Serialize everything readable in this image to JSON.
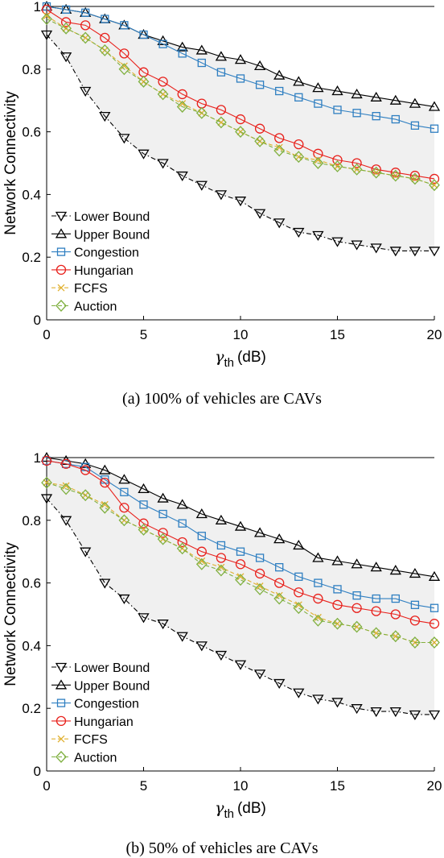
{
  "chart_data": [
    {
      "type": "line",
      "caption": "(a) 100% of vehicles are CAVs",
      "xlabel_main": "γ",
      "xlabel_sub": "th",
      "xlabel_unit": "(dB)",
      "ylabel": "Network Connectivity",
      "xlim": [
        0,
        20
      ],
      "ylim": [
        0,
        1
      ],
      "xticks": [
        "0",
        "5",
        "10",
        "15",
        "20"
      ],
      "yticks": [
        "0",
        "0.2",
        "0.4",
        "0.6",
        "0.8",
        "1"
      ],
      "shaded_band": "between Lower Bound and Upper Bound",
      "legend_position": "bottom-left",
      "x": [
        0,
        1,
        2,
        3,
        4,
        5,
        6,
        7,
        8,
        9,
        10,
        11,
        12,
        13,
        14,
        15,
        16,
        17,
        18,
        19,
        20
      ],
      "series": [
        {
          "name": "Lower Bound",
          "marker": "triangle-down",
          "color": "#000000",
          "dash": "dashdot",
          "values": [
            0.91,
            0.84,
            0.73,
            0.65,
            0.58,
            0.53,
            0.5,
            0.46,
            0.43,
            0.4,
            0.38,
            0.34,
            0.31,
            0.28,
            0.27,
            0.25,
            0.24,
            0.23,
            0.22,
            0.22,
            0.22
          ]
        },
        {
          "name": "Upper Bound",
          "marker": "triangle-up",
          "color": "#000000",
          "dash": "solid",
          "values": [
            1.0,
            0.99,
            0.98,
            0.96,
            0.94,
            0.91,
            0.89,
            0.87,
            0.86,
            0.84,
            0.83,
            0.81,
            0.78,
            0.76,
            0.74,
            0.73,
            0.72,
            0.71,
            0.7,
            0.69,
            0.68
          ]
        },
        {
          "name": "Congestion",
          "marker": "square",
          "color": "#2f7fc1",
          "dash": "solid",
          "values": [
            1.0,
            0.99,
            0.98,
            0.96,
            0.94,
            0.91,
            0.88,
            0.85,
            0.82,
            0.79,
            0.77,
            0.75,
            0.73,
            0.71,
            0.69,
            0.67,
            0.66,
            0.65,
            0.64,
            0.62,
            0.61
          ]
        },
        {
          "name": "Hungarian",
          "marker": "circle",
          "color": "#e8211c",
          "dash": "solid",
          "values": [
            0.99,
            0.95,
            0.94,
            0.9,
            0.85,
            0.79,
            0.76,
            0.72,
            0.69,
            0.67,
            0.64,
            0.61,
            0.58,
            0.56,
            0.53,
            0.51,
            0.5,
            0.48,
            0.47,
            0.46,
            0.45
          ]
        },
        {
          "name": "FCFS",
          "marker": "x",
          "color": "#e0b030",
          "dash": "dashed",
          "values": [
            0.97,
            0.93,
            0.9,
            0.86,
            0.81,
            0.76,
            0.72,
            0.69,
            0.66,
            0.63,
            0.6,
            0.57,
            0.55,
            0.52,
            0.51,
            0.49,
            0.48,
            0.47,
            0.46,
            0.45,
            0.43
          ]
        },
        {
          "name": "Auction",
          "marker": "diamond",
          "color": "#7fb040",
          "dash": "dashed",
          "values": [
            0.96,
            0.93,
            0.9,
            0.86,
            0.8,
            0.76,
            0.72,
            0.68,
            0.66,
            0.63,
            0.6,
            0.57,
            0.54,
            0.52,
            0.5,
            0.49,
            0.48,
            0.47,
            0.46,
            0.45,
            0.43
          ]
        }
      ]
    },
    {
      "type": "line",
      "caption": "(b) 50% of vehicles are CAVs",
      "xlabel_main": "γ",
      "xlabel_sub": "th",
      "xlabel_unit": "(dB)",
      "ylabel": "Network Connectivity",
      "xlim": [
        0,
        20
      ],
      "ylim": [
        0,
        1
      ],
      "xticks": [
        "0",
        "5",
        "10",
        "15",
        "20"
      ],
      "yticks": [
        "0",
        "0.2",
        "0.4",
        "0.6",
        "0.8",
        "1"
      ],
      "shaded_band": "between Lower Bound and Upper Bound",
      "legend_position": "bottom-left",
      "x": [
        0,
        1,
        2,
        3,
        4,
        5,
        6,
        7,
        8,
        9,
        10,
        11,
        12,
        13,
        14,
        15,
        16,
        17,
        18,
        19,
        20
      ],
      "series": [
        {
          "name": "Lower Bound",
          "marker": "triangle-down",
          "color": "#000000",
          "dash": "dashdot",
          "values": [
            0.87,
            0.8,
            0.7,
            0.6,
            0.55,
            0.49,
            0.47,
            0.43,
            0.4,
            0.37,
            0.34,
            0.31,
            0.28,
            0.25,
            0.23,
            0.22,
            0.2,
            0.19,
            0.19,
            0.18,
            0.18
          ]
        },
        {
          "name": "Upper Bound",
          "marker": "triangle-up",
          "color": "#000000",
          "dash": "solid",
          "values": [
            1.0,
            0.99,
            0.98,
            0.96,
            0.93,
            0.9,
            0.87,
            0.85,
            0.82,
            0.8,
            0.78,
            0.76,
            0.74,
            0.72,
            0.68,
            0.67,
            0.66,
            0.65,
            0.64,
            0.63,
            0.62
          ]
        },
        {
          "name": "Congestion",
          "marker": "square",
          "color": "#2f7fc1",
          "dash": "solid",
          "values": [
            0.99,
            0.98,
            0.97,
            0.93,
            0.89,
            0.85,
            0.82,
            0.79,
            0.75,
            0.72,
            0.7,
            0.68,
            0.65,
            0.62,
            0.6,
            0.58,
            0.56,
            0.55,
            0.55,
            0.53,
            0.52
          ]
        },
        {
          "name": "Hungarian",
          "marker": "circle",
          "color": "#e8211c",
          "dash": "solid",
          "values": [
            0.99,
            0.98,
            0.96,
            0.92,
            0.84,
            0.79,
            0.76,
            0.73,
            0.7,
            0.68,
            0.66,
            0.63,
            0.6,
            0.57,
            0.55,
            0.53,
            0.52,
            0.51,
            0.5,
            0.48,
            0.47
          ]
        },
        {
          "name": "FCFS",
          "marker": "x",
          "color": "#e0b030",
          "dash": "dashed",
          "values": [
            0.92,
            0.91,
            0.88,
            0.85,
            0.8,
            0.77,
            0.74,
            0.71,
            0.67,
            0.65,
            0.62,
            0.59,
            0.56,
            0.53,
            0.49,
            0.47,
            0.46,
            0.44,
            0.43,
            0.41,
            0.41
          ]
        },
        {
          "name": "Auction",
          "marker": "diamond",
          "color": "#7fb040",
          "dash": "dashed",
          "values": [
            0.92,
            0.9,
            0.88,
            0.84,
            0.8,
            0.77,
            0.74,
            0.71,
            0.66,
            0.64,
            0.61,
            0.58,
            0.55,
            0.52,
            0.48,
            0.47,
            0.46,
            0.44,
            0.43,
            0.41,
            0.41
          ]
        }
      ]
    }
  ]
}
